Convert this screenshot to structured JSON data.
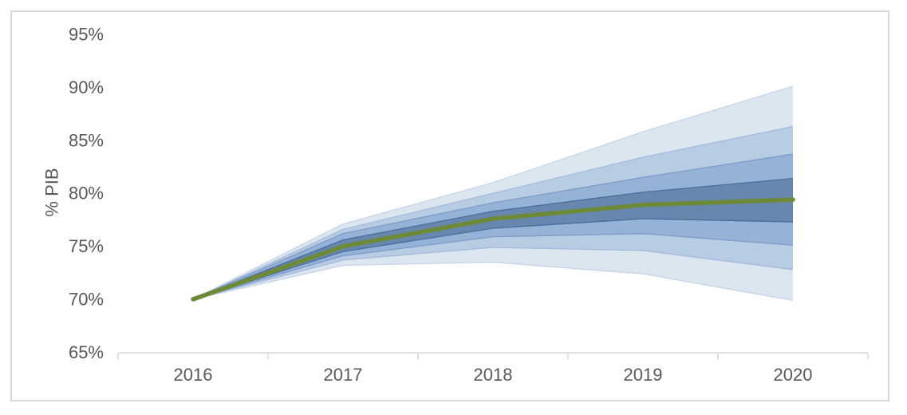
{
  "chart_data": {
    "type": "area",
    "subtype": "fan-chart",
    "title": "",
    "ylabel": "% PIB",
    "xlabel": "",
    "x_labels": [
      "2016",
      "2017",
      "2018",
      "2019",
      "2020"
    ],
    "ylim": [
      65,
      95
    ],
    "y_ticks": [
      {
        "value": 95,
        "label": "95%"
      },
      {
        "value": 90,
        "label": "90%"
      },
      {
        "value": 85,
        "label": "85%"
      },
      {
        "value": 80,
        "label": "80%"
      },
      {
        "value": 75,
        "label": "75%"
      },
      {
        "value": 70,
        "label": "70%"
      },
      {
        "value": 65,
        "label": "65%"
      }
    ],
    "grid": false,
    "legend": false,
    "center_line": {
      "name": "central-projection",
      "color": "#6e8a38",
      "values": [
        70.0,
        75.0,
        77.6,
        78.9,
        79.4
      ]
    },
    "bands": [
      {
        "name": "outer-confidence-band",
        "fill": "#dce6f1",
        "edge": "#c7d4e8",
        "upper": [
          70.0,
          77.1,
          81.0,
          85.8,
          90.1
        ],
        "lower": [
          70.0,
          73.2,
          73.5,
          72.4,
          69.9
        ]
      },
      {
        "name": "second-confidence-band",
        "fill": "#b8cce4",
        "edge": "#a4badb",
        "upper": [
          70.0,
          76.6,
          80.0,
          83.4,
          86.3
        ],
        "lower": [
          70.0,
          73.7,
          74.9,
          74.6,
          72.8
        ]
      },
      {
        "name": "third-confidence-band",
        "fill": "#95b3d7",
        "edge": "#7d9bc7",
        "upper": [
          70.0,
          76.2,
          79.1,
          81.5,
          83.7
        ],
        "lower": [
          70.0,
          74.1,
          75.9,
          76.2,
          75.1
        ]
      },
      {
        "name": "inner-confidence-band",
        "fill": "#6787ae",
        "edge": "#4a6d9e",
        "upper": [
          70.0,
          75.6,
          78.3,
          80.1,
          81.4
        ],
        "lower": [
          70.0,
          74.5,
          76.7,
          77.6,
          77.3
        ]
      }
    ],
    "axis_color": "#d9d9d9",
    "frame_color": "#d9d9d9",
    "text_color": "#595959"
  }
}
